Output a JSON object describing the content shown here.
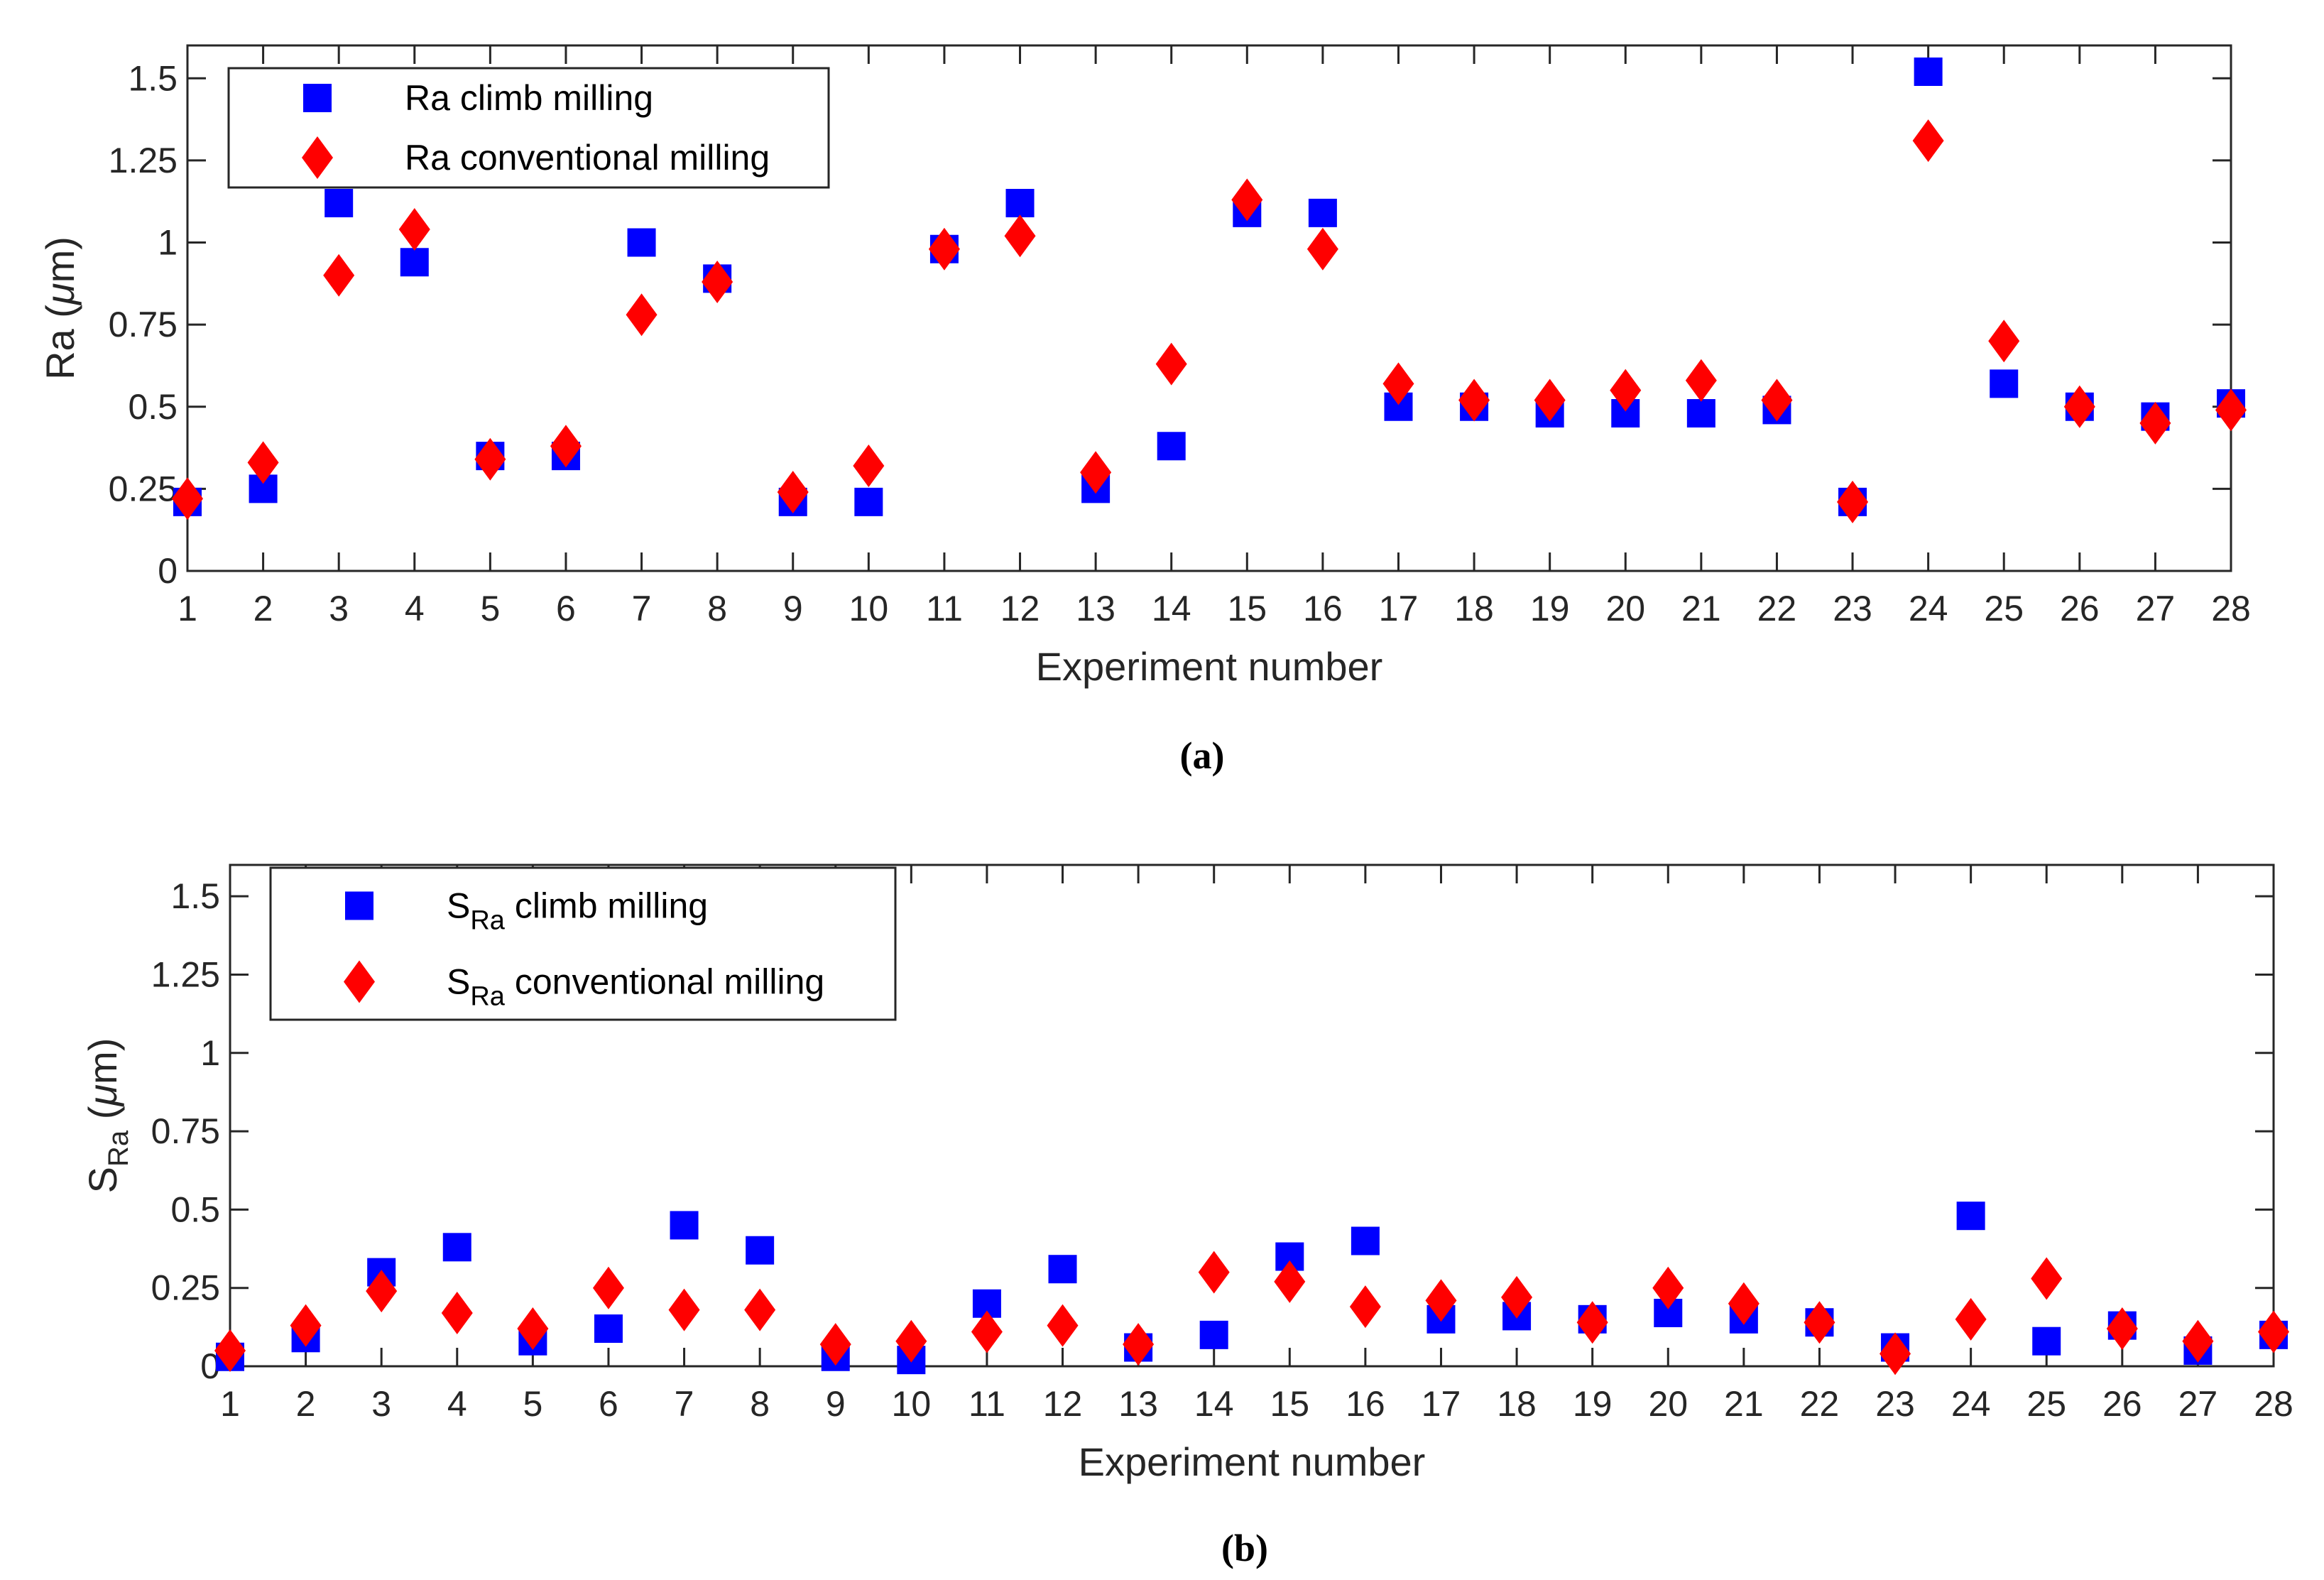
{
  "colors": {
    "climb": "#0000ff",
    "conventional": "#ff0000",
    "axis": "#262626"
  },
  "chart_data": [
    {
      "id": "a",
      "type": "scatter",
      "caption": "(a)",
      "xlabel": "Experiment number",
      "ylabel_main": "Ra",
      "ylabel_sub": "",
      "ylabel_unit_open": " (",
      "ylabel_unit_mu": "μ",
      "ylabel_unit_rest": "m)",
      "xlim": [
        1,
        28
      ],
      "ylim": [
        0,
        1.6
      ],
      "xticks": [
        1,
        2,
        3,
        4,
        5,
        6,
        7,
        8,
        9,
        10,
        11,
        12,
        13,
        14,
        15,
        16,
        17,
        18,
        19,
        20,
        21,
        22,
        23,
        24,
        25,
        26,
        27,
        28
      ],
      "yticks": [
        0,
        0.25,
        0.5,
        0.75,
        1,
        1.25,
        1.5
      ],
      "yticklabels": [
        "0",
        "0.25",
        "0.5",
        "0.75",
        "1",
        "1.25",
        "1.5"
      ],
      "legend_position": "top-left",
      "series": [
        {
          "name_main": "Ra",
          "name_sub": "",
          "name_rest": " climb milling",
          "marker": "square",
          "color": "#0000ff",
          "values": [
            0.21,
            0.25,
            1.12,
            0.94,
            0.35,
            0.35,
            1.0,
            0.89,
            0.21,
            0.21,
            0.98,
            1.12,
            0.25,
            0.38,
            1.09,
            1.09,
            0.5,
            0.5,
            0.48,
            0.48,
            0.48,
            0.49,
            0.21,
            1.52,
            0.57,
            0.5,
            0.47,
            0.51
          ]
        },
        {
          "name_main": "Ra",
          "name_sub": "",
          "name_rest": " conventional milling",
          "marker": "diamond",
          "color": "#ff0000",
          "values": [
            0.22,
            0.33,
            0.9,
            1.04,
            0.34,
            0.38,
            0.78,
            0.88,
            0.24,
            0.32,
            0.98,
            1.02,
            0.3,
            0.63,
            1.13,
            0.98,
            0.57,
            0.52,
            0.52,
            0.55,
            0.58,
            0.52,
            0.21,
            1.31,
            0.7,
            0.5,
            0.45,
            0.49
          ]
        }
      ]
    },
    {
      "id": "b",
      "type": "scatter",
      "caption": "(b)",
      "xlabel": "Experiment number",
      "ylabel_main": "S",
      "ylabel_sub": "Ra",
      "ylabel_unit_open": " (",
      "ylabel_unit_mu": "μ",
      "ylabel_unit_rest": "m)",
      "xlim": [
        1,
        28
      ],
      "ylim": [
        0,
        1.6
      ],
      "xticks": [
        1,
        2,
        3,
        4,
        5,
        6,
        7,
        8,
        9,
        10,
        11,
        12,
        13,
        14,
        15,
        16,
        17,
        18,
        19,
        20,
        21,
        22,
        23,
        24,
        25,
        26,
        27,
        28
      ],
      "yticks": [
        0,
        0.25,
        0.5,
        0.75,
        1,
        1.25,
        1.5
      ],
      "yticklabels": [
        "0",
        "0.25",
        "0.5",
        "0.75",
        "1",
        "1.25",
        "1.5"
      ],
      "legend_position": "top-left",
      "series": [
        {
          "name_main": "S",
          "name_sub": "Ra",
          "name_rest": " climb milling",
          "marker": "square",
          "color": "#0000ff",
          "values": [
            0.03,
            0.09,
            0.3,
            0.38,
            0.08,
            0.12,
            0.45,
            0.37,
            0.03,
            0.02,
            0.2,
            0.31,
            0.06,
            0.1,
            0.35,
            0.4,
            0.15,
            0.16,
            0.15,
            0.17,
            0.15,
            0.14,
            0.06,
            0.48,
            0.08,
            0.13,
            0.05,
            0.1
          ]
        },
        {
          "name_main": "S",
          "name_sub": "Ra",
          "name_rest": " conventional milling",
          "marker": "diamond",
          "color": "#ff0000",
          "values": [
            0.05,
            0.13,
            0.24,
            0.17,
            0.12,
            0.25,
            0.18,
            0.18,
            0.07,
            0.08,
            0.11,
            0.13,
            0.07,
            0.3,
            0.27,
            0.19,
            0.21,
            0.22,
            0.14,
            0.25,
            0.2,
            0.14,
            0.04,
            0.15,
            0.28,
            0.12,
            0.08,
            0.11
          ]
        }
      ]
    }
  ]
}
